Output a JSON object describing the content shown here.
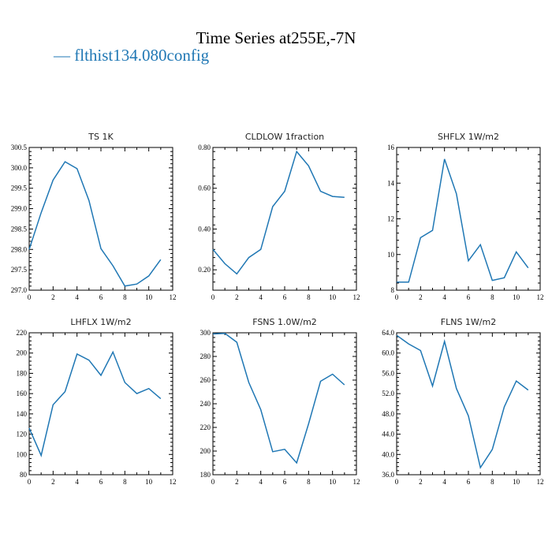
{
  "page": {
    "title": "Time Series at255E,-7N",
    "legend": "— flthist134.080config",
    "line_color": "#1f77b4"
  },
  "chart_data": [
    {
      "type": "line",
      "title": "TS   1K",
      "x": [
        0,
        1,
        2,
        3,
        4,
        5,
        6,
        7,
        8,
        9,
        10,
        11
      ],
      "series": [
        {
          "values": [
            298.0,
            298.9,
            299.7,
            300.15,
            299.98,
            299.2,
            298.02,
            297.6,
            297.1,
            297.15,
            297.35,
            297.75
          ]
        }
      ],
      "xlim": [
        0,
        12
      ],
      "ylim": [
        297.0,
        300.5
      ],
      "xticks": [
        "0",
        "2",
        "4",
        "6",
        "8",
        "10",
        "12"
      ],
      "yticks": [
        "297.0",
        "297.5",
        "298.0",
        "298.5",
        "299.0",
        "299.5",
        "300.0",
        "300.5"
      ],
      "xticks_v": [
        0,
        2,
        4,
        6,
        8,
        10,
        12
      ],
      "yticks_v": [
        297.0,
        297.5,
        298.0,
        298.5,
        299.0,
        299.5,
        300.0,
        300.5
      ]
    },
    {
      "type": "line",
      "title": "CLDLOW   1fraction",
      "x": [
        0,
        1,
        2,
        3,
        4,
        5,
        6,
        7,
        8,
        9,
        10,
        11
      ],
      "series": [
        {
          "values": [
            0.3,
            0.23,
            0.18,
            0.26,
            0.3,
            0.51,
            0.585,
            0.78,
            0.71,
            0.585,
            0.56,
            0.555
          ]
        }
      ],
      "xlim": [
        0,
        12
      ],
      "ylim": [
        0.1,
        0.8
      ],
      "xticks": [
        "0",
        "2",
        "4",
        "6",
        "8",
        "10",
        "12"
      ],
      "yticks": [
        "0.20",
        "0.40",
        "0.60",
        "0.80"
      ],
      "xticks_v": [
        0,
        2,
        4,
        6,
        8,
        10,
        12
      ],
      "yticks_v": [
        0.2,
        0.4,
        0.6,
        0.8
      ]
    },
    {
      "type": "line",
      "title": "SHFLX   1W/m2",
      "x": [
        0,
        1,
        2,
        3,
        4,
        5,
        6,
        7,
        8,
        9,
        10,
        11
      ],
      "series": [
        {
          "values": [
            8.45,
            8.45,
            10.95,
            11.35,
            15.35,
            13.4,
            9.65,
            10.55,
            8.55,
            8.7,
            10.15,
            9.25
          ]
        }
      ],
      "xlim": [
        0,
        12
      ],
      "ylim": [
        8,
        16
      ],
      "xticks": [
        "0",
        "2",
        "4",
        "6",
        "8",
        "10",
        "12"
      ],
      "yticks": [
        "8",
        "10",
        "12",
        "14",
        "16"
      ],
      "xticks_v": [
        0,
        2,
        4,
        6,
        8,
        10,
        12
      ],
      "yticks_v": [
        8,
        10,
        12,
        14,
        16
      ]
    },
    {
      "type": "line",
      "title": "LHFLX   1W/m2",
      "x": [
        0,
        1,
        2,
        3,
        4,
        5,
        6,
        7,
        8,
        9,
        10,
        11
      ],
      "series": [
        {
          "values": [
            126,
            99,
            149,
            162,
            199,
            193,
            178,
            201,
            171,
            160,
            165,
            155
          ]
        }
      ],
      "xlim": [
        0,
        12
      ],
      "ylim": [
        80,
        220
      ],
      "xticks": [
        "0",
        "2",
        "4",
        "6",
        "8",
        "10",
        "12"
      ],
      "yticks": [
        "80",
        "100",
        "120",
        "140",
        "160",
        "180",
        "200",
        "220"
      ],
      "xticks_v": [
        0,
        2,
        4,
        6,
        8,
        10,
        12
      ],
      "yticks_v": [
        80,
        100,
        120,
        140,
        160,
        180,
        200,
        220
      ]
    },
    {
      "type": "line",
      "title": "FSNS   1.0W/m2",
      "x": [
        0,
        1,
        2,
        3,
        4,
        5,
        6,
        7,
        8,
        9,
        10,
        11
      ],
      "series": [
        {
          "values": [
            299,
            299.5,
            292,
            258,
            235,
            199.5,
            201.5,
            190,
            223,
            259,
            265,
            256
          ]
        }
      ],
      "xlim": [
        0,
        12
      ],
      "ylim": [
        180,
        300
      ],
      "xticks": [
        "0",
        "2",
        "4",
        "6",
        "8",
        "10",
        "12"
      ],
      "yticks": [
        "180",
        "200",
        "220",
        "240",
        "260",
        "280",
        "300"
      ],
      "xticks_v": [
        0,
        2,
        4,
        6,
        8,
        10,
        12
      ],
      "yticks_v": [
        180,
        200,
        220,
        240,
        260,
        280,
        300
      ]
    },
    {
      "type": "line",
      "title": "FLNS   1W/m2",
      "x": [
        0,
        1,
        2,
        3,
        4,
        5,
        6,
        7,
        8,
        9,
        10,
        11
      ],
      "series": [
        {
          "values": [
            63.5,
            61.8,
            60.5,
            53.5,
            62.3,
            53,
            47.6,
            37.4,
            41,
            49.4,
            54.5,
            52.7
          ]
        }
      ],
      "xlim": [
        0,
        12
      ],
      "ylim": [
        36,
        64
      ],
      "xticks": [
        "0",
        "2",
        "4",
        "6",
        "8",
        "10",
        "12"
      ],
      "yticks": [
        "36.0",
        "40.0",
        "44.0",
        "48.0",
        "52.0",
        "56.0",
        "60.0",
        "64.0"
      ],
      "xticks_v": [
        0,
        2,
        4,
        6,
        8,
        10,
        12
      ],
      "yticks_v": [
        36,
        40,
        44,
        48,
        52,
        56,
        60,
        64
      ]
    }
  ]
}
